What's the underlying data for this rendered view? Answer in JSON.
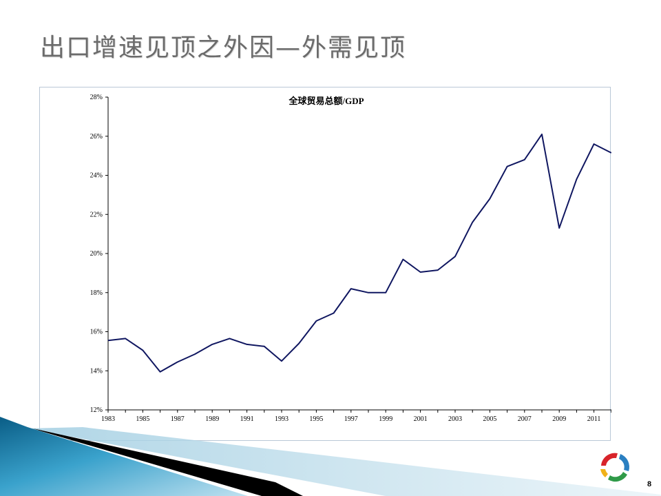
{
  "slide": {
    "title": "出口增速见顶之外因—外需见顶",
    "page_number": "8"
  },
  "colors": {
    "line": "#0f1660",
    "axis": "#000000",
    "frame": "#b9c7d6",
    "title_text": "#6b6b6b"
  },
  "chart_data": {
    "type": "line",
    "title": "全球贸易总额/GDP",
    "xlabel": "",
    "ylabel": "",
    "x": [
      1983,
      1984,
      1985,
      1986,
      1987,
      1988,
      1989,
      1990,
      1991,
      1992,
      1993,
      1994,
      1995,
      1996,
      1997,
      1998,
      1999,
      2000,
      2001,
      2002,
      2003,
      2004,
      2005,
      2006,
      2007,
      2008,
      2009,
      2010,
      2011,
      2012
    ],
    "xticks": [
      "1983",
      "1985",
      "1987",
      "1989",
      "1991",
      "1993",
      "1995",
      "1997",
      "1999",
      "2001",
      "2003",
      "2005",
      "2007",
      "2009",
      "2011"
    ],
    "ylim": [
      12,
      28
    ],
    "yticks": [
      "12%",
      "14%",
      "16%",
      "18%",
      "20%",
      "22%",
      "24%",
      "26%",
      "28%"
    ],
    "series": [
      {
        "values": [
          15.55,
          15.65,
          15.05,
          13.95,
          14.45,
          14.85,
          15.35,
          15.65,
          15.35,
          15.25,
          14.5,
          15.4,
          16.55,
          16.95,
          18.2,
          18.0,
          18.0,
          19.7,
          19.05,
          19.15,
          19.85,
          21.6,
          22.8,
          24.45,
          24.8,
          26.1,
          21.3,
          23.8,
          25.6,
          25.15
        ]
      }
    ],
    "grid": false,
    "legend": "none"
  }
}
